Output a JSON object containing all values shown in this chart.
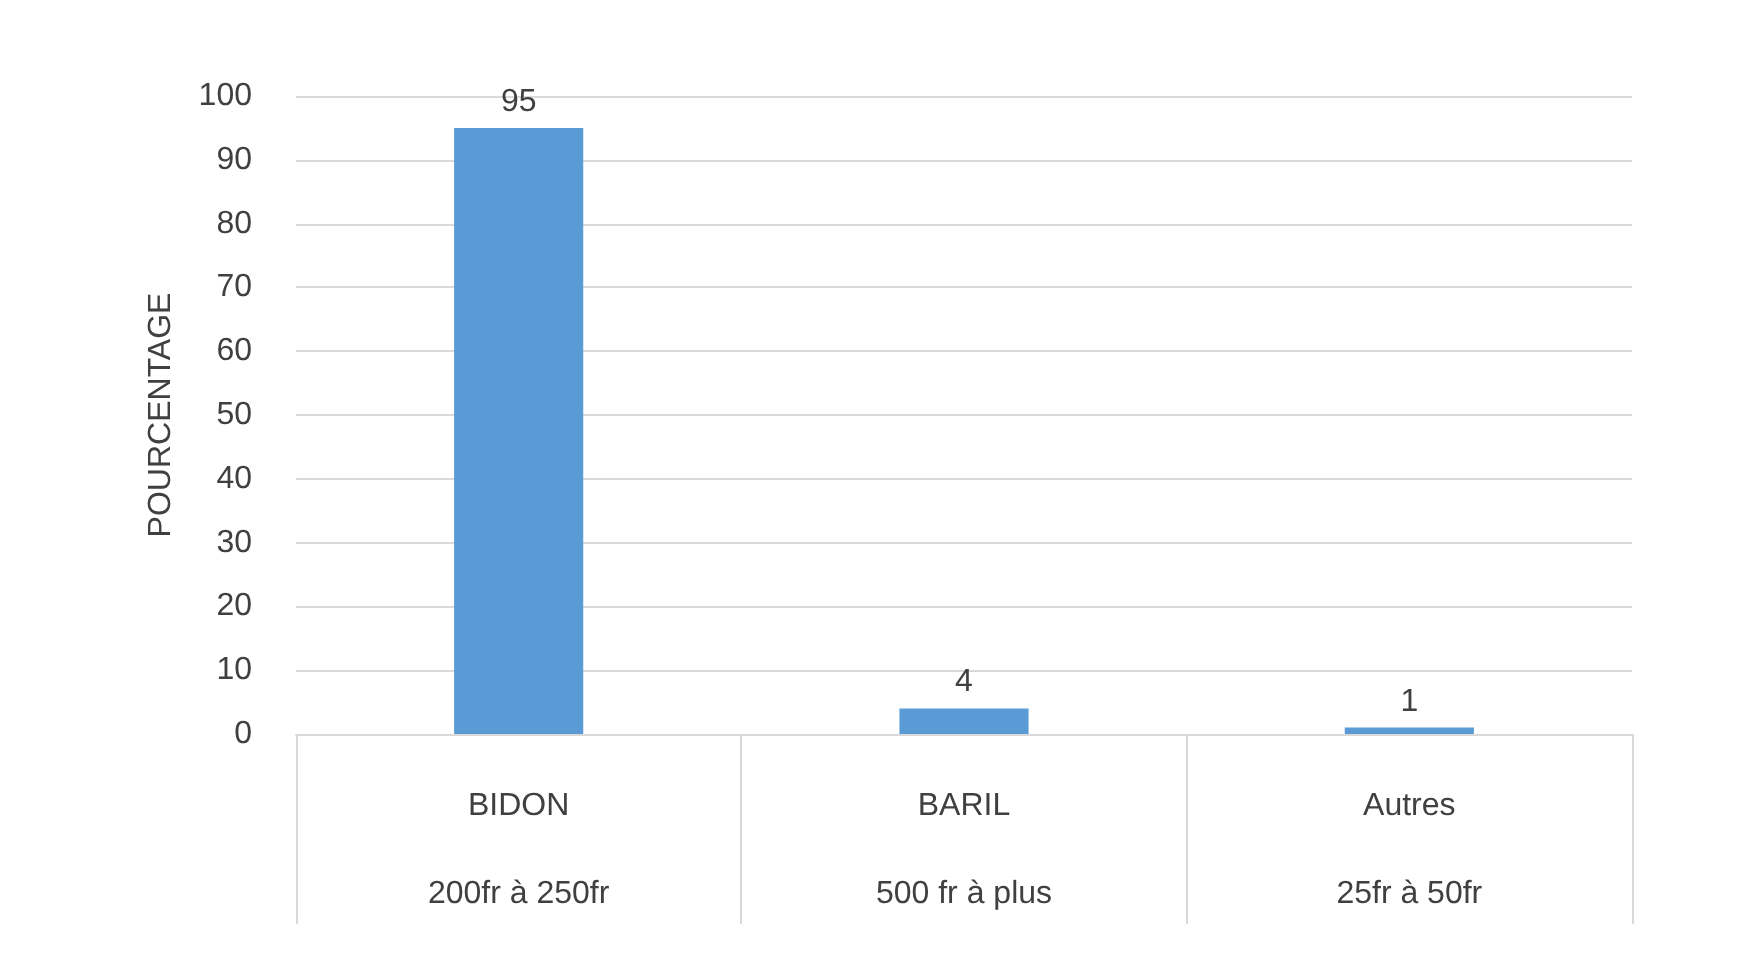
{
  "chart_data": {
    "type": "bar",
    "ylabel": "POURCENTAGE",
    "categories": [
      "BIDON\n200fr à 250fr",
      "BARIL\n500 fr à plus",
      "Autres\n25fr à 50fr"
    ],
    "values": [
      95,
      4,
      1
    ],
    "color": "#5b9bd5",
    "ylim": [
      0,
      100
    ],
    "yticks": [
      0,
      10,
      20,
      30,
      40,
      50,
      60,
      70,
      80,
      90,
      100
    ],
    "grid": "y",
    "data_labels": true
  }
}
